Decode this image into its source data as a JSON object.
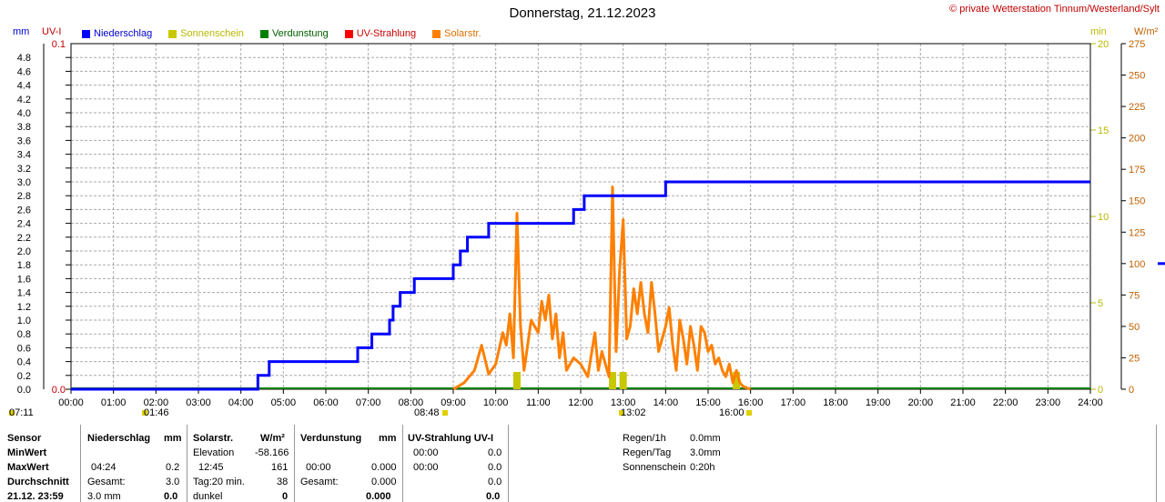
{
  "title": "Donnerstag, 21.12.2023",
  "copyright": "© private Wetterstation Tinnum/Westerland/Sylt",
  "axis_units": {
    "mm": "mm",
    "uvi": "UV-I",
    "min": "min",
    "wm2": "W/m²"
  },
  "legend": [
    {
      "label": "Niederschlag",
      "color": "#0000ff"
    },
    {
      "label": "Sonnenschein",
      "color": "#c8c800"
    },
    {
      "label": "Verdunstung",
      "color": "#008000"
    },
    {
      "label": "UV-Strahlung",
      "color": "#ff0000"
    },
    {
      "label": "Solarstr.",
      "color": "#ff8000"
    }
  ],
  "markers": {
    "sunrise": "07:11",
    "sunrise_prev": "01:46",
    "sunshine_start": "08:48",
    "solar_noon": "13:02",
    "sunset": "16:00"
  },
  "chart_data": {
    "type": "line",
    "x_range": [
      "00:00",
      "24:00"
    ],
    "x_ticks": [
      "00:00",
      "01:00",
      "02:00",
      "03:00",
      "04:00",
      "05:00",
      "06:00",
      "07:00",
      "08:00",
      "09:00",
      "10:00",
      "11:00",
      "12:00",
      "13:00",
      "14:00",
      "15:00",
      "16:00",
      "17:00",
      "18:00",
      "19:00",
      "20:00",
      "21:00",
      "22:00",
      "23:00",
      "24:00"
    ],
    "y_mm_ticks": [
      "0.0",
      "0.2",
      "0.4",
      "0.6",
      "0.8",
      "1.0",
      "1.2",
      "1.4",
      "1.6",
      "1.8",
      "2.0",
      "2.2",
      "2.4",
      "2.6",
      "2.8",
      "3.0",
      "3.2",
      "3.4",
      "3.6",
      "3.8",
      "4.0",
      "4.2",
      "4.4",
      "4.6",
      "4.8"
    ],
    "y_mm_range": [
      0,
      5.0
    ],
    "y_uvi_ticks": [
      "0.0",
      "0.1"
    ],
    "y_min_ticks": [
      "0",
      "5",
      "10",
      "15",
      "20"
    ],
    "y_wm2_ticks": [
      "0",
      "25",
      "50",
      "75",
      "100",
      "125",
      "150",
      "175",
      "200",
      "225",
      "250",
      "275"
    ],
    "y_wm2_range": [
      0,
      275
    ],
    "grid": true,
    "series": [
      {
        "name": "Niederschlag",
        "unit": "mm",
        "color": "#0000ff",
        "step": [
          [
            "00:00",
            0.0
          ],
          [
            "04:24",
            0.2
          ],
          [
            "04:40",
            0.4
          ],
          [
            "06:45",
            0.6
          ],
          [
            "07:05",
            0.8
          ],
          [
            "07:30",
            1.0
          ],
          [
            "07:35",
            1.2
          ],
          [
            "07:45",
            1.4
          ],
          [
            "08:05",
            1.6
          ],
          [
            "09:00",
            1.8
          ],
          [
            "09:10",
            2.0
          ],
          [
            "09:20",
            2.2
          ],
          [
            "09:50",
            2.4
          ],
          [
            "11:50",
            2.6
          ],
          [
            "12:05",
            2.8
          ],
          [
            "14:00",
            3.0
          ],
          [
            "24:00",
            3.0
          ]
        ]
      },
      {
        "name": "Solarstr.",
        "unit": "W/m²",
        "color": "#ff8000",
        "points": [
          [
            "09:00",
            0
          ],
          [
            "09:15",
            5
          ],
          [
            "09:30",
            15
          ],
          [
            "09:40",
            35
          ],
          [
            "09:50",
            12
          ],
          [
            "10:00",
            20
          ],
          [
            "10:10",
            45
          ],
          [
            "10:15",
            35
          ],
          [
            "10:20",
            60
          ],
          [
            "10:25",
            25
          ],
          [
            "10:30",
            140
          ],
          [
            "10:35",
            50
          ],
          [
            "10:40",
            15
          ],
          [
            "10:50",
            55
          ],
          [
            "11:00",
            45
          ],
          [
            "11:05",
            70
          ],
          [
            "11:10",
            55
          ],
          [
            "11:15",
            75
          ],
          [
            "11:20",
            40
          ],
          [
            "11:25",
            60
          ],
          [
            "11:30",
            25
          ],
          [
            "11:35",
            45
          ],
          [
            "11:40",
            15
          ],
          [
            "11:50",
            25
          ],
          [
            "12:00",
            20
          ],
          [
            "12:10",
            10
          ],
          [
            "12:20",
            45
          ],
          [
            "12:25",
            15
          ],
          [
            "12:30",
            30
          ],
          [
            "12:35",
            20
          ],
          [
            "12:40",
            10
          ],
          [
            "12:45",
            161
          ],
          [
            "12:50",
            30
          ],
          [
            "12:55",
            95
          ],
          [
            "13:00",
            135
          ],
          [
            "13:05",
            40
          ],
          [
            "13:10",
            50
          ],
          [
            "13:15",
            80
          ],
          [
            "13:20",
            60
          ],
          [
            "13:25",
            85
          ],
          [
            "13:30",
            60
          ],
          [
            "13:35",
            45
          ],
          [
            "13:40",
            85
          ],
          [
            "13:45",
            60
          ],
          [
            "13:50",
            30
          ],
          [
            "14:00",
            50
          ],
          [
            "14:05",
            65
          ],
          [
            "14:10",
            35
          ],
          [
            "14:15",
            15
          ],
          [
            "14:20",
            55
          ],
          [
            "14:25",
            40
          ],
          [
            "14:30",
            20
          ],
          [
            "14:35",
            50
          ],
          [
            "14:40",
            35
          ],
          [
            "14:45",
            15
          ],
          [
            "14:50",
            50
          ],
          [
            "14:55",
            45
          ],
          [
            "15:00",
            30
          ],
          [
            "15:05",
            35
          ],
          [
            "15:10",
            20
          ],
          [
            "15:15",
            25
          ],
          [
            "15:20",
            15
          ],
          [
            "15:25",
            10
          ],
          [
            "15:30",
            20
          ],
          [
            "15:35",
            5
          ],
          [
            "15:40",
            15
          ],
          [
            "15:45",
            5
          ],
          [
            "15:50",
            2
          ],
          [
            "16:00",
            0
          ]
        ]
      },
      {
        "name": "Sonnenschein",
        "unit": "min",
        "color": "#c8c800",
        "bars": [
          [
            "10:30",
            1
          ],
          [
            "12:45",
            1
          ],
          [
            "13:00",
            1
          ],
          [
            "15:40",
            1
          ]
        ]
      },
      {
        "name": "Verdunstung",
        "unit": "mm",
        "color": "#008000",
        "constant": 0.0
      },
      {
        "name": "UV-Strahlung",
        "unit": "UV-I",
        "color": "#ff0000",
        "constant": 0.0
      }
    ]
  },
  "stats": {
    "sensor": {
      "label": "Sensor",
      "min": "MinWert",
      "max": "MaxWert",
      "avg": "Durchschnitt",
      "date": "21.12. 23:59"
    },
    "niederschlag": {
      "header": "Niederschlag",
      "unit": "mm",
      "max_time": "04:24",
      "max": "0.2",
      "gesamt_label": "Gesamt:",
      "gesamt": "3.0",
      "total": "3.0 mm",
      "total_val": "0.0"
    },
    "solar": {
      "header": "Solarstr.",
      "unit": "W/m²",
      "elev_label": "Elevation",
      "elev": "-58.166",
      "max_time": "12:45",
      "max": "161",
      "tag_label": "Tag:20 min.",
      "tag": "38",
      "dunkel_label": "dunkel",
      "dunkel": "0"
    },
    "verdunstung": {
      "header": "Verdunstung",
      "unit": "mm",
      "max_time": "00:00",
      "max": "0.000",
      "gesamt_label": "Gesamt:",
      "gesamt": "0.000",
      "total": "0.000"
    },
    "uv": {
      "header": "UV-Strahlung UV-I",
      "min_time": "00:00",
      "min": "0.0",
      "max_time": "00:00",
      "max": "0.0",
      "avg": "0.0",
      "total": "0.0"
    },
    "summary": [
      {
        "label": "Regen/1h",
        "value": "0.0mm"
      },
      {
        "label": "Regen/Tag",
        "value": "3.0mm"
      },
      {
        "label": "Sonnenschein",
        "value": "0:20h"
      }
    ]
  }
}
